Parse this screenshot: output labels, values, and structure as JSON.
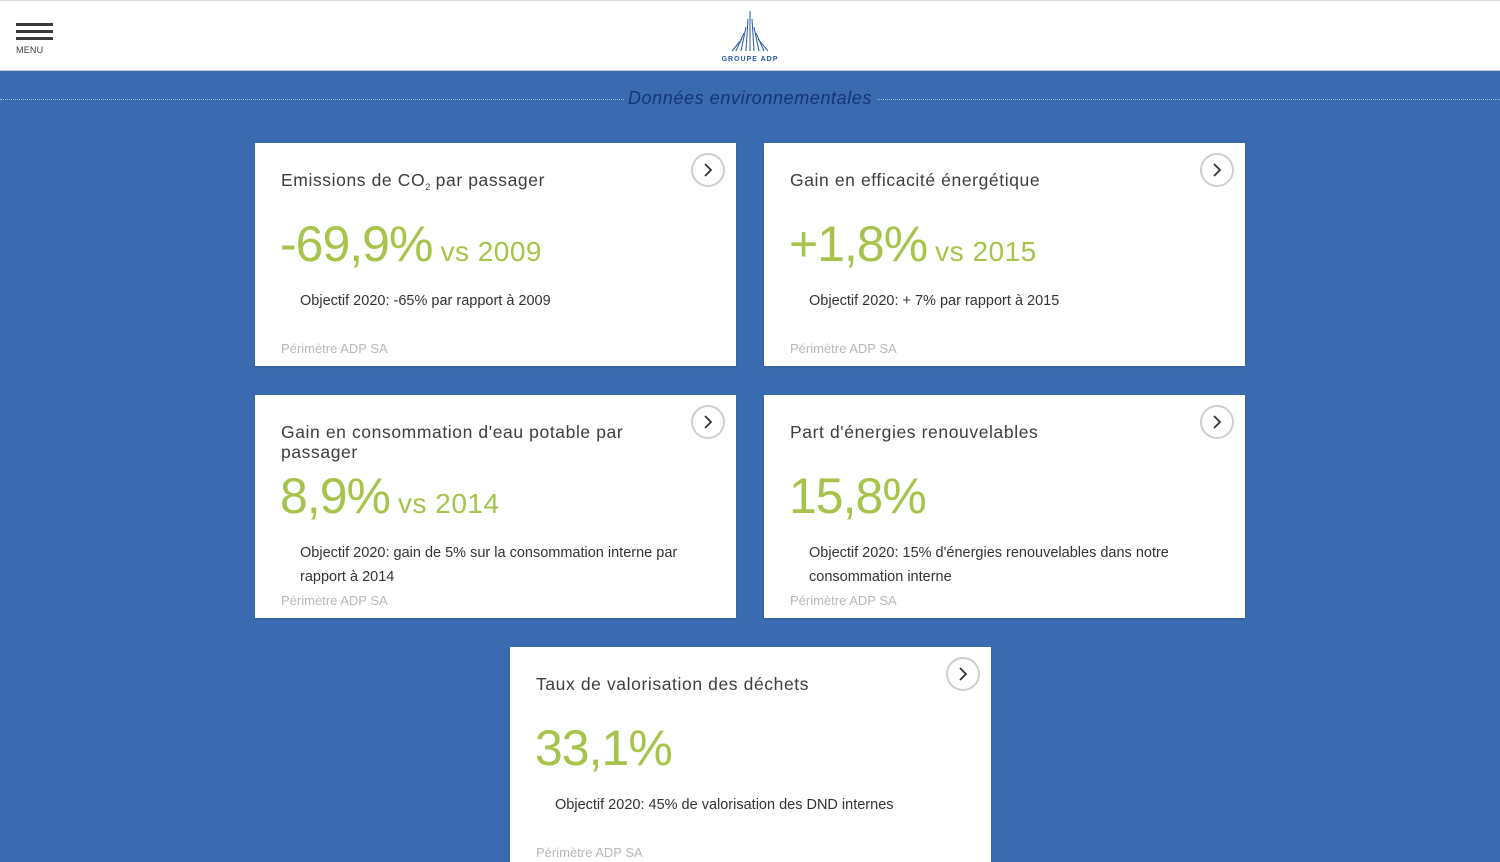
{
  "header": {
    "menu_label": "MENU",
    "logo_text": "GROUPE ADP"
  },
  "section": {
    "title": "Données environnementales"
  },
  "cards": [
    {
      "title": "Emissions de CO",
      "title_sub": "2",
      "title_suffix": " par passager",
      "value": "-69,9%",
      "comparison": "vs 2009",
      "objective": "Objectif 2020: -65% par rapport à 2009",
      "scope": "Périmètre ADP SA"
    },
    {
      "title": "Gain en efficacité énergétique",
      "value": "+1,8%",
      "comparison": "vs 2015",
      "objective": "Objectif 2020: + 7% par rapport à 2015",
      "scope": "Périmètre ADP SA"
    },
    {
      "title": "Gain en consommation d'eau potable par passager",
      "value": "8,9%",
      "comparison": "vs 2014",
      "objective": "Objectif 2020: gain de 5% sur la consommation interne par rapport à 2014",
      "scope": "Périmètre ADP SA"
    },
    {
      "title": "Part d'énergies renouvelables",
      "value": "15,8%",
      "comparison": "",
      "objective": "Objectif 2020: 15% d'énergies renouvelables dans notre consommation interne",
      "scope": "Périmètre ADP SA"
    },
    {
      "title": "Taux de valorisation des déchets",
      "value": "33,1%",
      "comparison": "",
      "objective": "Objectif 2020: 45% de valorisation des DND internes",
      "scope": "Périmètre ADP SA"
    }
  ],
  "colors": {
    "background": "#3a6bb0",
    "accent_green": "#a7c34a",
    "title_navy": "#14337a",
    "logo_blue": "#2a5aa8"
  },
  "icons": {
    "menu": "hamburger-menu-icon",
    "logo": "groupe-adp-logo-icon",
    "card_link": "chevron-right-icon"
  }
}
